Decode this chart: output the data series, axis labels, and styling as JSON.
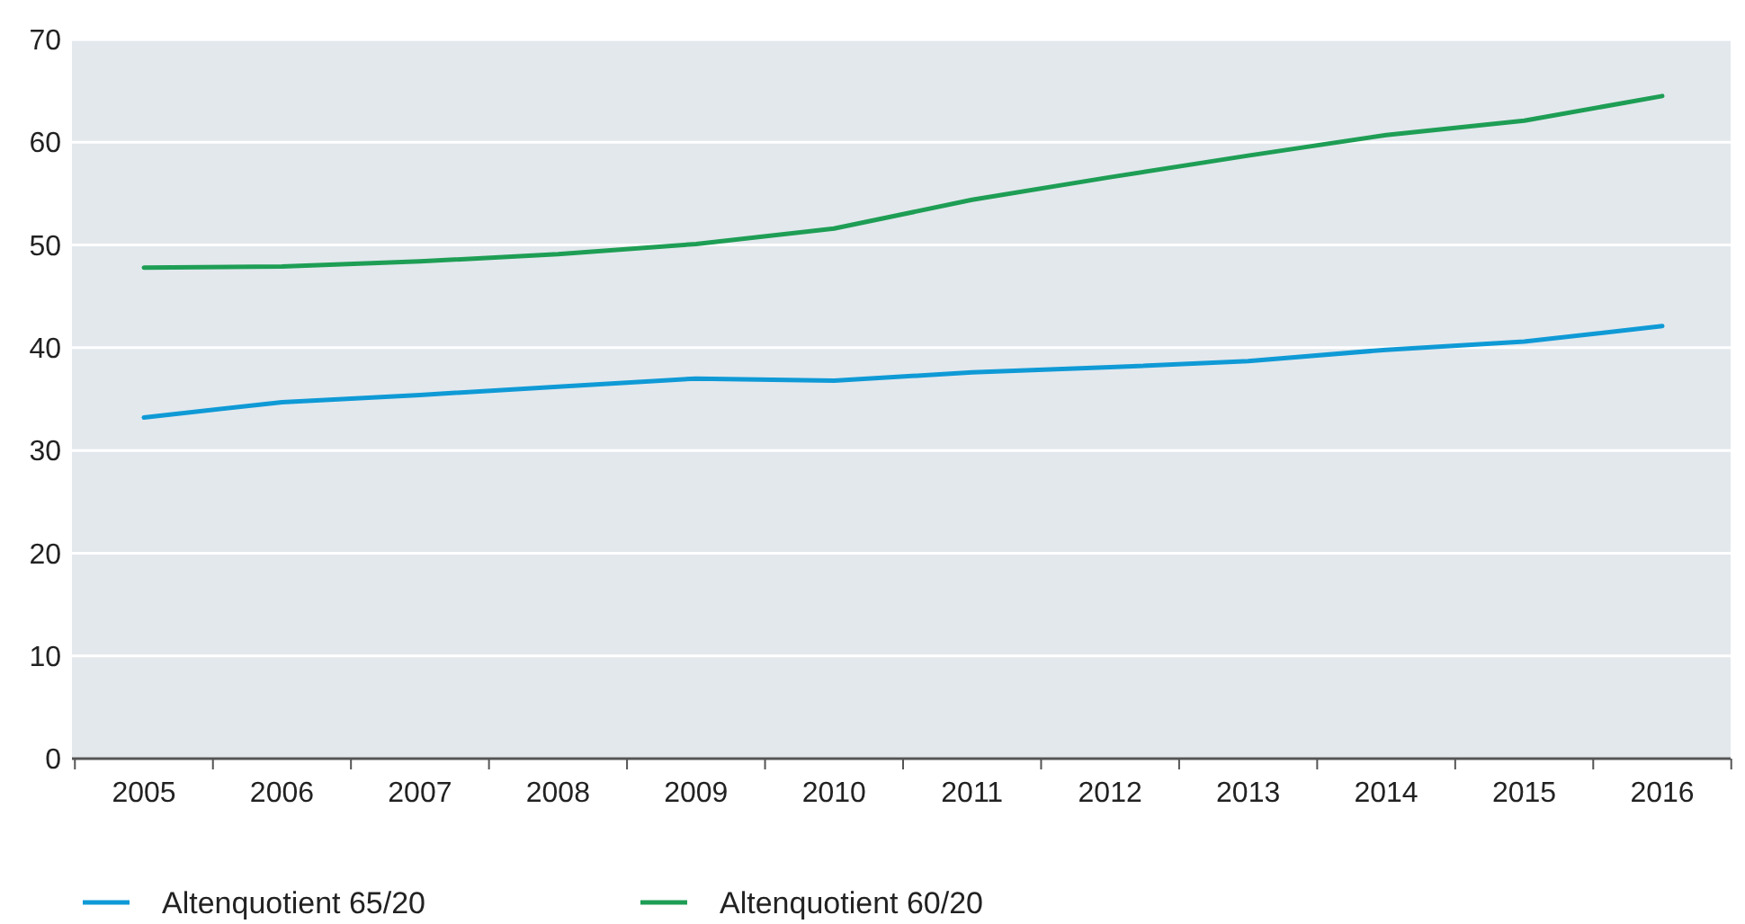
{
  "chart_data": {
    "type": "line",
    "categories": [
      "2005",
      "2006",
      "2007",
      "2008",
      "2009",
      "2010",
      "2011",
      "2012",
      "2013",
      "2014",
      "2015",
      "2016"
    ],
    "series": [
      {
        "name": "Altenquotient 65/20",
        "color": "#0f9ad6",
        "values": [
          33.2,
          34.7,
          35.4,
          36.2,
          37.0,
          36.8,
          37.6,
          38.1,
          38.7,
          39.8,
          40.6,
          42.1
        ]
      },
      {
        "name": "Altenquotient 60/20",
        "color": "#1e9e55",
        "values": [
          47.8,
          47.9,
          48.4,
          49.1,
          50.1,
          51.6,
          54.4,
          56.6,
          58.7,
          60.7,
          62.1,
          64.5
        ]
      }
    ],
    "ylim": [
      0,
      70
    ],
    "yticks": [
      0,
      10,
      20,
      30,
      40,
      50,
      60,
      70
    ],
    "grid": "y",
    "legend": "bottom left",
    "marker": "none",
    "line_style": "solid"
  }
}
